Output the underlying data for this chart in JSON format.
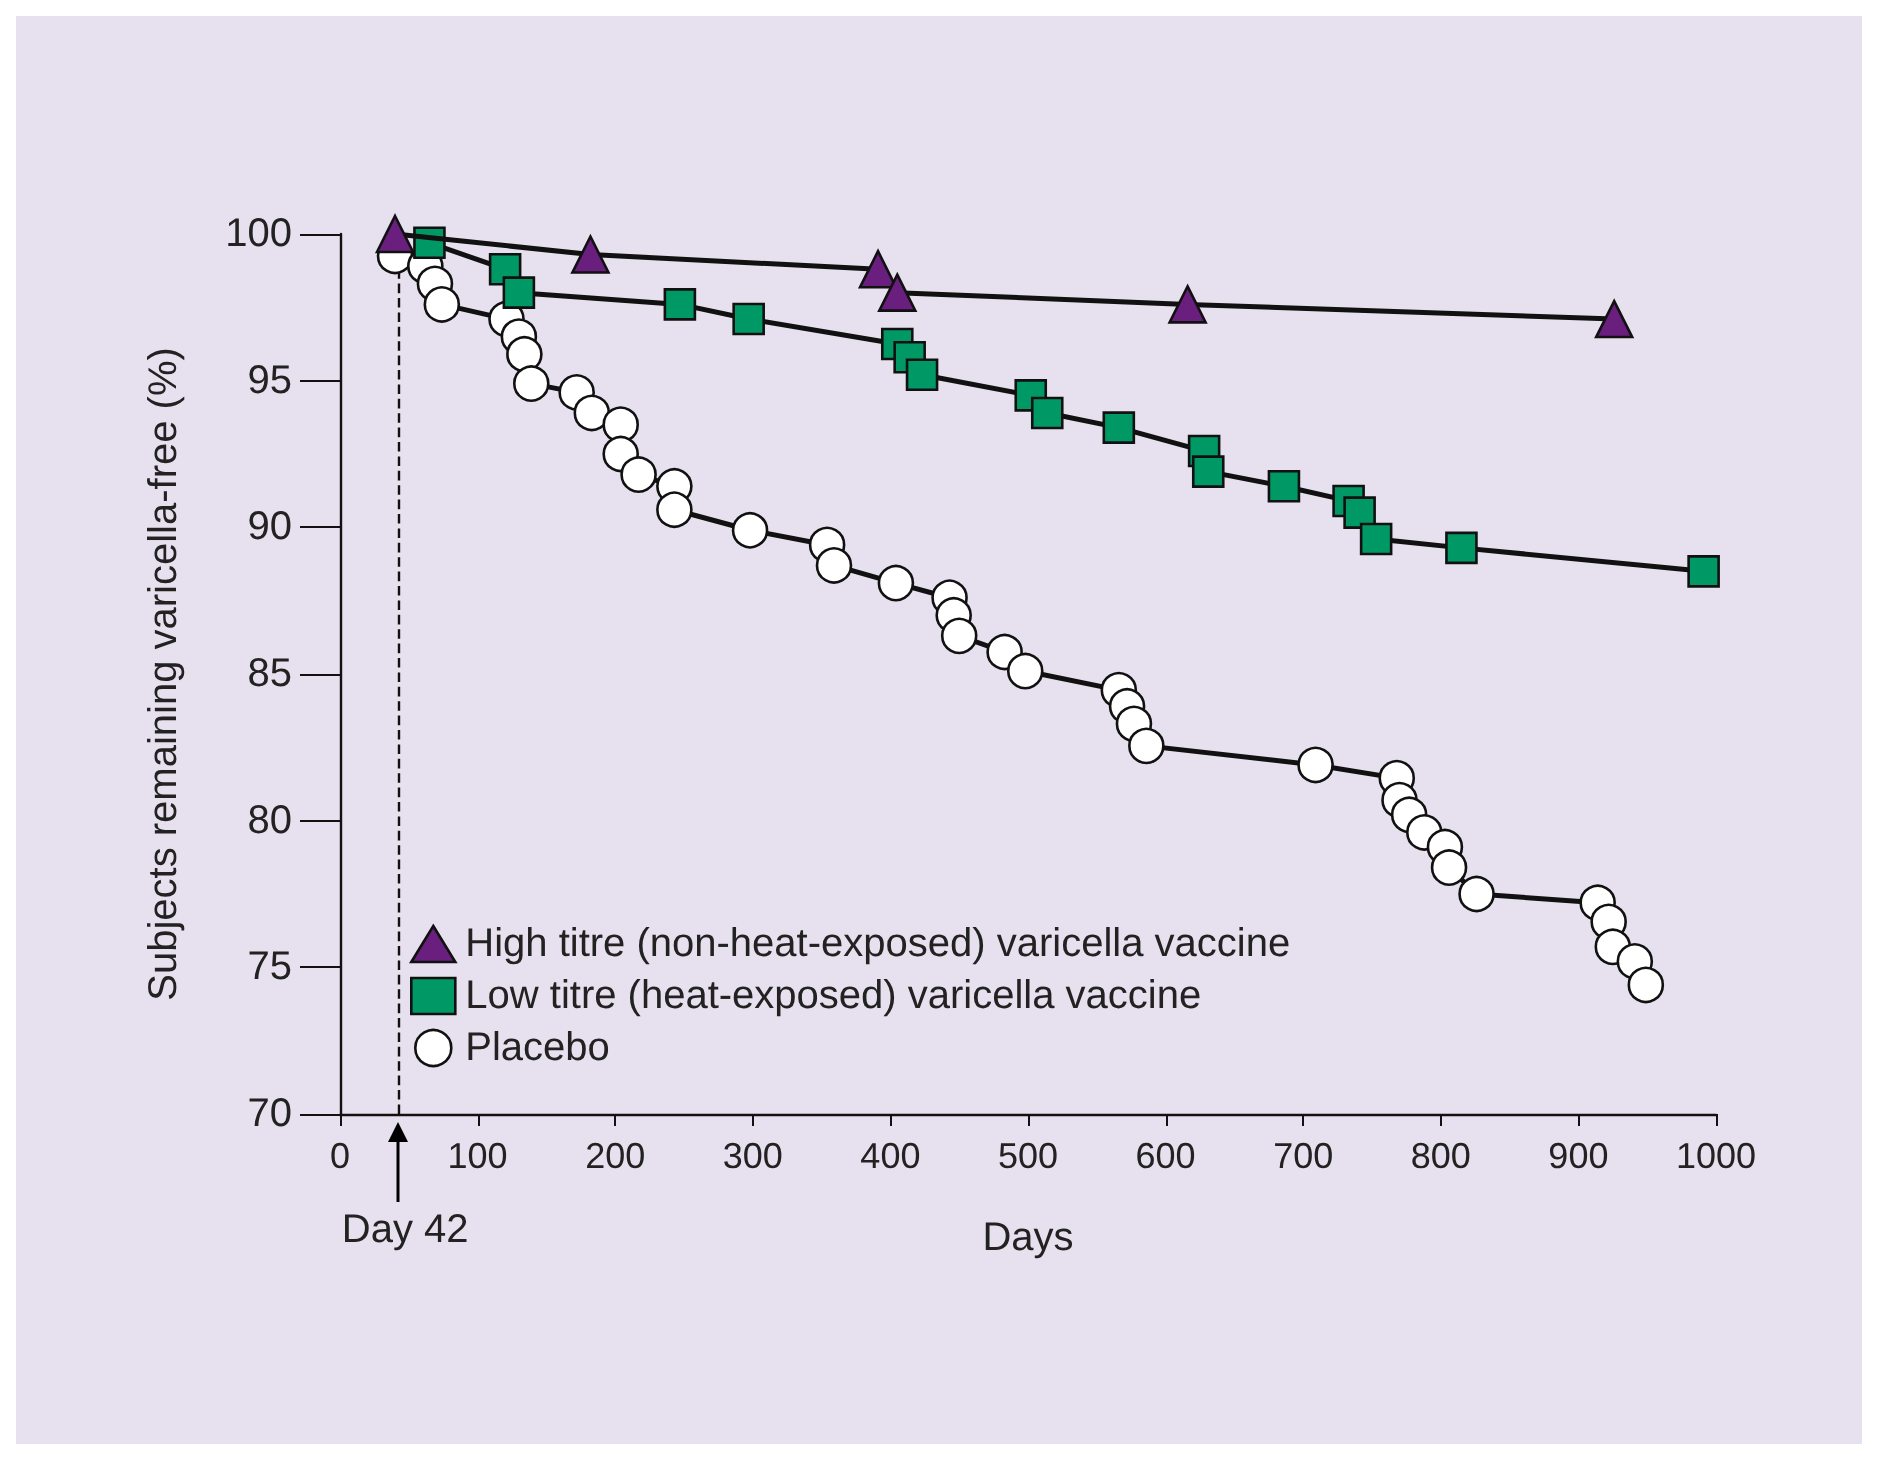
{
  "chart_data": {
    "type": "line",
    "xlabel": "Days",
    "ylabel": "Subjects remaining varicella-free (%)",
    "xlim": [
      0,
      1000
    ],
    "xticks": [
      0,
      100,
      200,
      300,
      400,
      500,
      600,
      700,
      800,
      900,
      1000
    ],
    "ylim": [
      70,
      100
    ],
    "yticks": [
      70,
      75,
      80,
      85,
      90,
      95,
      100
    ],
    "grid": false,
    "legend": "bottom left",
    "line_style": "solid",
    "ref_lines": [
      {
        "axis": "x",
        "value": 42,
        "label": "Day 42",
        "line_style": "dashed"
      }
    ],
    "series": [
      {
        "name": "High titre (non-heat-exposed) varicella vaccine",
        "color": "#6a1f7f",
        "marker": "triangle",
        "x": [
          40,
          182,
          391,
          405,
          616,
          926
        ],
        "values": [
          100,
          99.3,
          98.8,
          98.0,
          97.6,
          97.1
        ]
      },
      {
        "name": "Low titre (heat-exposed) varicella vaccine",
        "color": "#009966",
        "marker": "square",
        "x": [
          65,
          120,
          130,
          247,
          297,
          405,
          414,
          423,
          502,
          514,
          566,
          628,
          631,
          686,
          733,
          741,
          753,
          815,
          991
        ],
        "values": [
          99.7,
          98.8,
          98.0,
          97.6,
          97.1,
          96.25,
          95.8,
          95.2,
          94.5,
          93.9,
          93.4,
          92.6,
          91.9,
          91.4,
          90.9,
          90.5,
          89.6,
          89.3,
          88.5
        ]
      },
      {
        "name": "Placebo",
        "color": "#ffffff",
        "marker": "circle",
        "x": [
          40,
          62,
          69,
          74,
          121,
          130,
          134,
          139,
          172,
          183,
          204,
          204,
          217,
          243,
          243,
          298,
          354,
          359,
          404,
          443,
          446,
          450,
          483,
          498,
          566,
          572,
          577,
          586,
          709,
          768,
          770,
          777,
          788,
          803,
          806,
          826,
          914,
          922,
          925,
          941,
          949
        ],
        "values": [
          99.25,
          98.9,
          98.3,
          97.6,
          97.1,
          96.5,
          95.9,
          94.9,
          94.6,
          93.9,
          93.5,
          92.5,
          91.8,
          91.4,
          90.6,
          89.9,
          89.4,
          88.7,
          88.1,
          87.6,
          87.0,
          86.3,
          85.75,
          85.1,
          84.45,
          83.9,
          83.3,
          82.55,
          81.9,
          81.45,
          80.7,
          80.2,
          79.6,
          79.1,
          78.4,
          77.5,
          77.2,
          76.55,
          75.7,
          75.2,
          74.4
        ]
      }
    ]
  }
}
